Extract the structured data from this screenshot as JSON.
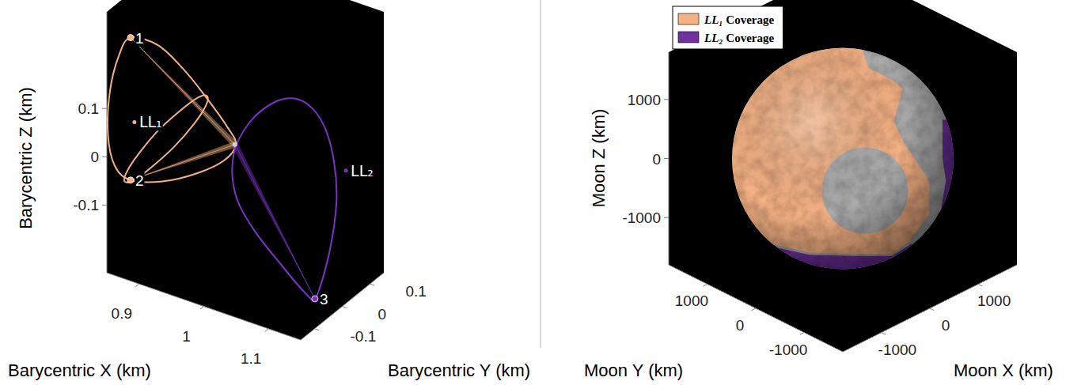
{
  "chart_data": [
    {
      "type": "line3d",
      "x_label": "Barycentric X (km)",
      "y_label": "Barycentric Y (km)",
      "z_label": "Barycentric Z (km)",
      "xlim": [
        0.85,
        1.15
      ],
      "ylim": [
        -0.15,
        0.15
      ],
      "zlim": [
        -0.24,
        0.3
      ],
      "xticks": [
        0.9,
        1,
        1.1
      ],
      "yticks": [
        -0.1,
        0,
        0.1
      ],
      "zticks": [
        -0.1,
        0,
        0.1
      ],
      "series": [
        {
          "color": "#f4b183",
          "x": [
            0.861,
            0.891,
            0.917,
            0.941,
            0.965,
            0.979,
            0.967,
            0.937,
            0.897,
            0.861,
            0.852,
            0.85,
            0.851,
            0.856
          ],
          "y": [
            -0.09,
            -0.06,
            -0.03,
            0,
            0.015,
            0.015,
            0,
            -0.03,
            -0.06,
            -0.09,
            -0.126,
            -0.146,
            -0.141,
            -0.12
          ],
          "z": [
            0.224,
            0.208,
            0.157,
            0.093,
            0.04,
            0.009,
            -0.023,
            -0.05,
            -0.071,
            -0.071,
            -0.029,
            0.045,
            0.133,
            0.199
          ]
        },
        {
          "color": "#f4b183",
          "x": [
            0.941,
            0.94,
            0.927,
            0.905,
            0.882,
            0.862,
            0.852,
            0.855,
            0.867,
            0.888,
            0.911,
            0.93
          ],
          "y": [
            0,
            -0.003,
            -0.015,
            -0.036,
            -0.06,
            -0.078,
            -0.09,
            -0.09,
            -0.075,
            -0.054,
            -0.03,
            -0.009
          ],
          "z": [
            0.098,
            0.079,
            0.041,
            -0.007,
            -0.047,
            -0.076,
            -0.078,
            -0.057,
            -0.021,
            0.027,
            0.067,
            0.094
          ]
        },
        {
          "color": "#7a32c4",
          "x": [
            1.063,
            1.085,
            1.099,
            1.109,
            1.113,
            1.109,
            1.103,
            1.114,
            1.098,
            1.062,
            1.019,
            0.991,
            0.982,
            1.0,
            1.033
          ],
          "y": [
            0.03,
            0.045,
            0.06,
            0.066,
            0.066,
            0.06,
            0.045,
            -0.015,
            -0.015,
            -0.015,
            -0.015,
            -0.015,
            0,
            0.015,
            0.024
          ],
          "z": [
            0.136,
            0.118,
            0.073,
            0.009,
            -0.063,
            -0.143,
            -0.213,
            -0.234,
            -0.228,
            -0.188,
            -0.134,
            -0.074,
            -0.003,
            0.064,
            0.116
          ]
        }
      ],
      "points": [
        {
          "label": "1",
          "color": "#f4b183",
          "x": 0.861,
          "y": -0.09,
          "z": 0.224
        },
        {
          "label": "2",
          "color": "#f4b183",
          "x": 0.861,
          "y": -0.09,
          "z": -0.071
        },
        {
          "label": "3",
          "color": "#7a32c4",
          "x": 1.114,
          "y": -0.015,
          "z": -0.234
        }
      ],
      "libration_points": [
        {
          "label": "LL₁",
          "color": "#f4b183",
          "x": 0.867,
          "y": -0.09,
          "z": 0.052
        },
        {
          "label": "LL₂",
          "color": "#7a32c4",
          "x": 1.117,
          "y": 0.09,
          "z": -0.016
        }
      ],
      "moon": {
        "x": 0.984,
        "y": 0,
        "z": 0.018
      }
    },
    {
      "type": "sphere3d",
      "x_label": "Moon X (km)",
      "y_label": "Moon Y (km)",
      "z_label": "Moon Z (km)",
      "xlim": [
        -1800,
        1800
      ],
      "ylim": [
        -1800,
        1800
      ],
      "zlim": [
        -1800,
        1800
      ],
      "xticks": [
        -1000,
        0,
        1000
      ],
      "yticks": [
        -1000,
        0,
        1000
      ],
      "zticks": [
        -1000,
        0,
        1000
      ],
      "legend": "upper left",
      "series": [
        {
          "name": "LL₁ Coverage",
          "color": "#f4b183"
        },
        {
          "name": "LL₂ Coverage",
          "color": "#7030a0"
        }
      ]
    }
  ]
}
